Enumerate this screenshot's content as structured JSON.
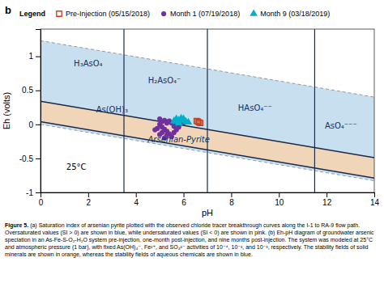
{
  "chart_data": {
    "type": "scatter",
    "panel_label": "b",
    "xlabel": "pH",
    "ylabel": "Eh (volts)",
    "xlim": [
      0,
      14
    ],
    "ylim": [
      -1,
      1.4
    ],
    "xticks": [
      0,
      2,
      4,
      6,
      8,
      10,
      12,
      14
    ],
    "yticks": [
      -1,
      -0.5,
      0,
      0.5,
      1
    ],
    "legend": "top",
    "legend_title": "Legend",
    "series": [
      {
        "name": "Pre-Injection (05/15/2018)",
        "color": "#c84020",
        "marker": "square",
        "x": [
          6.55,
          6.65,
          6.7,
          6.6
        ],
        "values": [
          0.05,
          0.03,
          0.02,
          0.04
        ]
      },
      {
        "name": "Month 1 (07/19/2018)",
        "color": "#7030a0",
        "marker": "circle",
        "x": [
          5.0,
          5.1,
          5.2,
          5.0,
          5.3,
          5.4,
          5.1,
          5.5,
          5.2,
          5.6,
          5.3,
          4.9,
          5.4,
          5.5,
          5.6,
          5.7,
          5.8,
          5.2,
          5.3,
          5.1,
          4.8,
          5.0,
          6.0
        ],
        "values": [
          0.08,
          0.04,
          0.06,
          0.0,
          0.02,
          0.05,
          -0.04,
          0.02,
          -0.07,
          -0.03,
          -0.1,
          -0.06,
          -0.14,
          -0.18,
          -0.12,
          -0.08,
          -0.04,
          -0.2,
          -0.16,
          -0.12,
          -0.08,
          -0.15,
          0.02
        ]
      },
      {
        "name": "Month 9 (03/18/2019)",
        "color": "#00b0c8",
        "marker": "triangle",
        "x": [
          5.7,
          5.8,
          5.9,
          6.0,
          6.1,
          5.6,
          6.2,
          5.8,
          5.9,
          6.0,
          5.7
        ],
        "values": [
          0.08,
          0.06,
          0.09,
          0.06,
          0.04,
          0.05,
          0.03,
          0.02,
          0.07,
          0.08,
          0.04
        ]
      }
    ],
    "regions": [
      {
        "color": "#c8dff0",
        "line_color": "#999999",
        "line_style": "dashed",
        "x": [
          0,
          14
        ],
        "lower": [
          0,
          -0.8288
        ],
        "upper": [
          1.23,
          0.4012
        ]
      },
      {
        "color": "#f0d5b8",
        "line_color": "#1a2a4a",
        "line_style": "solid",
        "x": [
          0,
          14
        ],
        "lower": [
          0.04,
          -0.7888
        ],
        "upper": [
          0.34,
          -0.4888
        ]
      }
    ],
    "vertical_lines": [
      3.5,
      7.0,
      11.5
    ],
    "line_color": "#1a2a4a",
    "annotations": [
      {
        "text": "H₃AsO₄",
        "x": 2.0,
        "y": 0.9,
        "color": "#1a3060"
      },
      {
        "text": "H₂AsO₄⁻",
        "x": 5.2,
        "y": 0.65,
        "color": "#1a3060"
      },
      {
        "text": "As(OH)₃",
        "x": 3.0,
        "y": 0.22,
        "color": "#1a3060"
      },
      {
        "text": "HAsO₄⁻⁻",
        "x": 9.0,
        "y": 0.24,
        "color": "#1a3060"
      },
      {
        "text": "AsO₄⁻⁻⁻",
        "x": 12.6,
        "y": -0.02,
        "color": "#1a3060"
      },
      {
        "text": "Arsenian-Pyrite",
        "x": 5.8,
        "y": -0.22,
        "color": "#1a3060",
        "style": "italic"
      },
      {
        "text": "25°C",
        "x": 1.5,
        "y": -0.62,
        "color": "#000000"
      }
    ],
    "caption_bold": "Figure 5.",
    "caption": " (a) Saturation index of arsenian pyrite plotted with the observed chloride tracer breakthrough curves along the I-1 to RA-9 flow path. Oversaturated values (SI > 0) are shown in blue, while undersaturated values (SI < 0) are shown in pink. (b) Eh-pH diagram of groundwater arsenic speciation in an As-Fe-S-O₂-H₂O system pre-injection, one-month post-injection, and nine months post-injection. The system was modeled at 25°C and atmospheric pressure (1 bar), with fixed As(OH)₄⁻, Fe²⁺, and SO₄²⁻ activities of 10⁻⁴, 10⁻³, and 10⁻³, respectively. The stability fields of solid minerals are shown in orange, whereas the stability fields of aqueous chemicals are shown in blue."
  }
}
